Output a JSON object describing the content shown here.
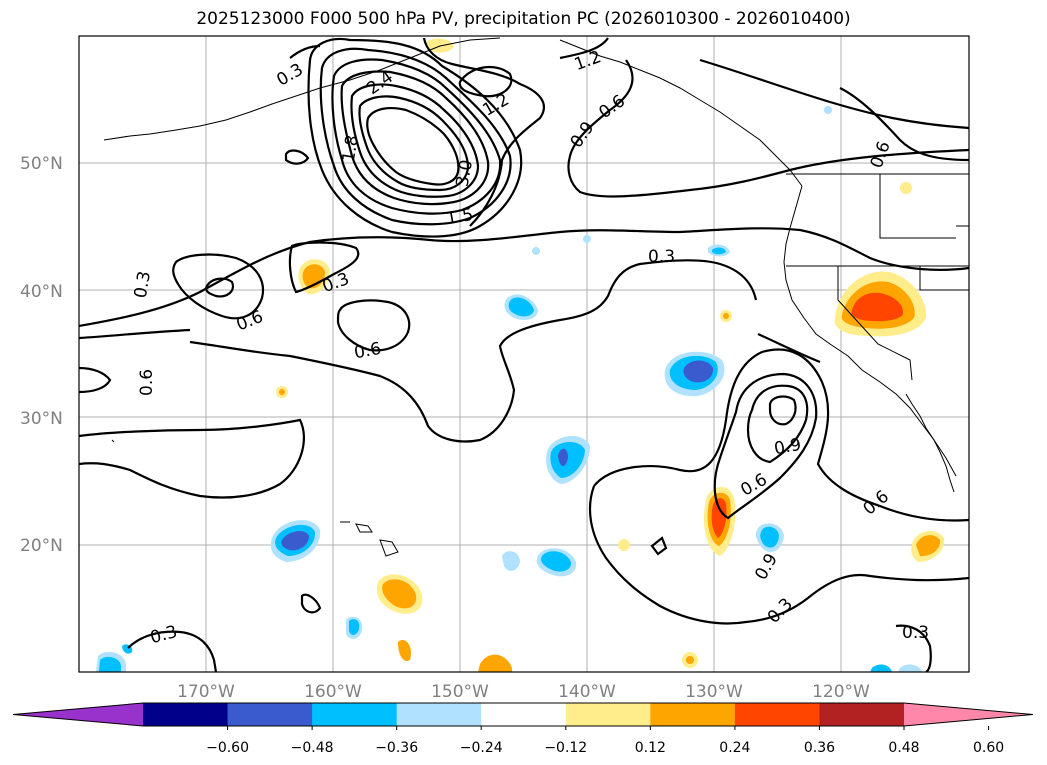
{
  "title": "2025123000 F000 500 hPa PV, precipitation PC (2026010300 - 2026010400)",
  "map": {
    "lat_ticks": [
      "50°N",
      "40°N",
      "30°N",
      "20°N"
    ],
    "lon_ticks": [
      "170°W",
      "160°W",
      "150°W",
      "140°W",
      "130°W",
      "120°W"
    ],
    "gridlines": true,
    "pv_contour_labels": [
      "0.3",
      "0.6",
      "0.9",
      "1.2",
      "1.5",
      "2.4",
      "3.0",
      "1.8"
    ]
  },
  "colorbar": {
    "orientation": "horizontal",
    "extend": "both",
    "colors": [
      "#9932cc",
      "#00008b",
      "#3a5bcd",
      "#00bfff",
      "#b0e2ff",
      "#ffffff",
      "#ffec8b",
      "#ffa500",
      "#ff4500",
      "#b22222",
      "#ff88aa"
    ],
    "tick_labels": [
      "−0.60",
      "−0.48",
      "−0.36",
      "−0.24",
      "−0.12",
      "0.12",
      "0.24",
      "0.36",
      "0.48",
      "0.60"
    ]
  }
}
